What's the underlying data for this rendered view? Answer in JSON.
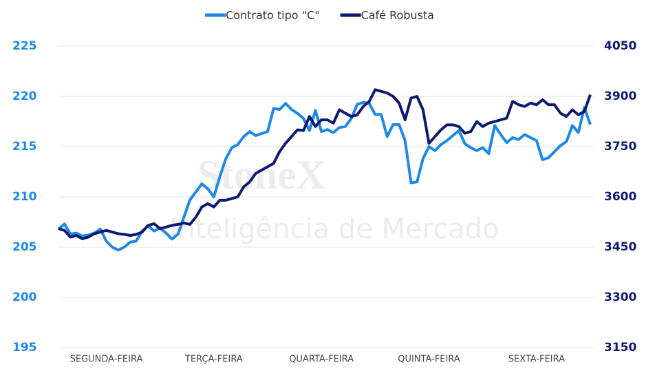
{
  "chart_data": {
    "type": "line",
    "watermark": {
      "brand": "StoneX",
      "tagline": "Inteligência de Mercado"
    },
    "categories": [
      null,
      null,
      null,
      null,
      null,
      null,
      null,
      null,
      "SEGUNDA-FEIRA",
      null,
      null,
      null,
      null,
      null,
      null,
      null,
      null,
      null,
      null,
      null,
      null,
      null,
      null,
      null,
      null,
      null,
      "TERÇA-FEIRA",
      null,
      null,
      null,
      null,
      null,
      null,
      null,
      null,
      null,
      null,
      null,
      null,
      null,
      null,
      null,
      null,
      null,
      "QUARTA-FEIRA",
      null,
      null,
      null,
      null,
      null,
      null,
      null,
      null,
      null,
      null,
      null,
      null,
      null,
      null,
      null,
      null,
      null,
      "QUINTA-FEIRA",
      null,
      null,
      null,
      null,
      null,
      null,
      null,
      null,
      null,
      null,
      null,
      null,
      null,
      null,
      null,
      null,
      null,
      "SEXTA-FEIRA",
      null,
      null,
      null,
      null,
      null,
      null,
      null,
      null,
      null
    ],
    "series": [
      {
        "name": "Contrato tipo \"C\"",
        "color": "#1f88e6",
        "axis": "y",
        "values": [
          206.8,
          207.3,
          206.3,
          206.4,
          206.1,
          206.2,
          206.4,
          206.8,
          205.6,
          205.0,
          204.7,
          205.0,
          205.5,
          205.6,
          206.6,
          207.1,
          206.6,
          206.9,
          206.4,
          205.8,
          206.3,
          208.0,
          209.7,
          210.5,
          211.3,
          210.8,
          210.0,
          212.0,
          213.8,
          214.9,
          215.2,
          216.0,
          216.5,
          216.1,
          216.3,
          216.5,
          218.8,
          218.7,
          219.3,
          218.7,
          218.3,
          217.8,
          216.6,
          218.6,
          216.5,
          216.7,
          216.4,
          216.9,
          217.0,
          217.8,
          219.2,
          219.4,
          219.3,
          218.2,
          218.2,
          216.0,
          217.2,
          217.2,
          215.6,
          211.4,
          211.5,
          213.8,
          215.0,
          214.6,
          215.2,
          215.6,
          216.1,
          216.6,
          215.3,
          214.9,
          214.6,
          214.9,
          214.3,
          217.1,
          216.2,
          215.4,
          215.9,
          215.7,
          216.2,
          215.9,
          215.6,
          213.7,
          213.9,
          214.5,
          215.1,
          215.5,
          217.1,
          216.4,
          218.9,
          217.2
        ]
      },
      {
        "name": "Café Robusta",
        "color": "#0e1a6e",
        "axis": "y2",
        "values": [
          3505,
          3500,
          3480,
          3485,
          3475,
          3480,
          3490,
          3495,
          3500,
          3495,
          3490,
          3488,
          3485,
          3488,
          3495,
          3515,
          3520,
          3505,
          3510,
          3515,
          3518,
          3522,
          3518,
          3540,
          3570,
          3580,
          3570,
          3590,
          3590,
          3595,
          3600,
          3630,
          3645,
          3670,
          3680,
          3690,
          3700,
          3735,
          3760,
          3780,
          3800,
          3798,
          3840,
          3810,
          3830,
          3830,
          3820,
          3860,
          3850,
          3840,
          3845,
          3870,
          3885,
          3920,
          3915,
          3910,
          3900,
          3880,
          3830,
          3895,
          3900,
          3860,
          3760,
          3780,
          3800,
          3815,
          3815,
          3810,
          3790,
          3795,
          3825,
          3810,
          3820,
          3825,
          3830,
          3835,
          3885,
          3875,
          3870,
          3880,
          3875,
          3890,
          3875,
          3875,
          3850,
          3840,
          3860,
          3845,
          3855,
          3905
        ]
      }
    ],
    "ylim": [
      195,
      225
    ],
    "yticks": [
      195,
      200,
      205,
      210,
      215,
      220,
      225
    ],
    "y2lim": [
      3150,
      4050
    ],
    "y2ticks": [
      3150,
      3300,
      3450,
      3600,
      3750,
      3900,
      4050
    ],
    "grid": true
  }
}
